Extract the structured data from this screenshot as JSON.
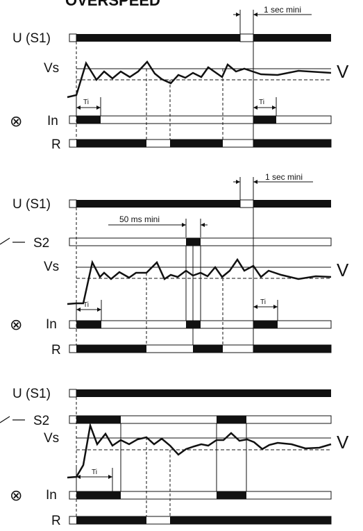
{
  "title": "OVERSPEED",
  "labels": {
    "u": "U (S1)",
    "s2": "S2",
    "vs": "Vs",
    "v": "V",
    "in": "In",
    "r": "R",
    "ti": "Ti",
    "one_sec": "1 sec mini",
    "fifty_ms": "50 ms mini"
  },
  "symbols": {
    "output_icon": "circle-cross-icon",
    "switch_icon": "switch-contact-icon"
  },
  "colors": {
    "ink": "#111111",
    "background": "#ffffff"
  }
}
